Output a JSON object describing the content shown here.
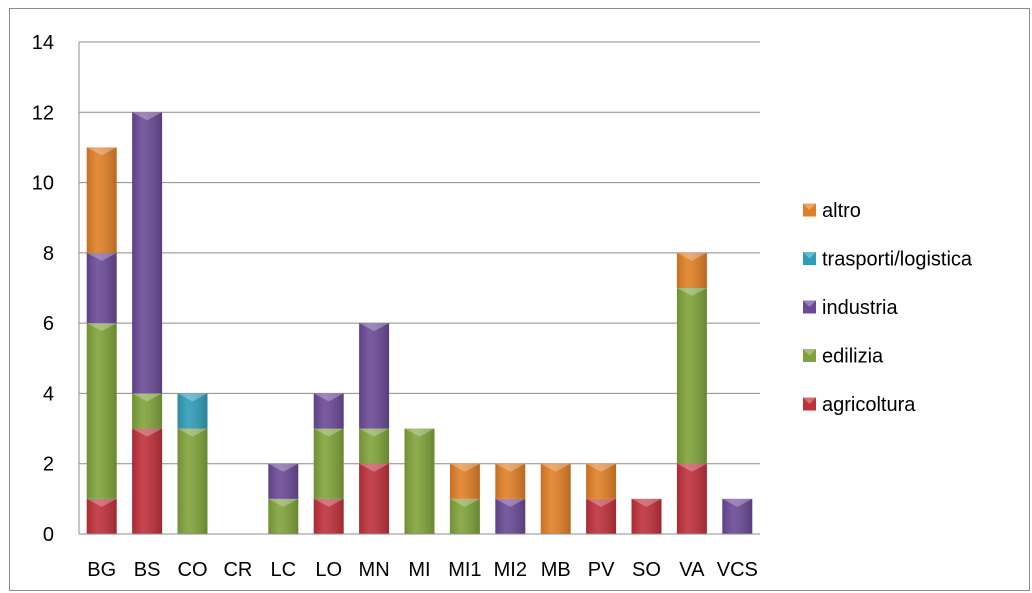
{
  "chart_data": {
    "type": "bar",
    "stacked": true,
    "title": "",
    "xlabel": "",
    "ylabel": "",
    "ylim": [
      0,
      14
    ],
    "yticks": [
      0,
      2,
      4,
      6,
      8,
      10,
      12,
      14
    ],
    "grid": true,
    "legend_position": "right",
    "categories": [
      "BG",
      "BS",
      "CO",
      "CR",
      "LC",
      "LO",
      "MN",
      "MI",
      "MI1",
      "MI2",
      "MB",
      "PV",
      "SO",
      "VA",
      "VCS"
    ],
    "series": [
      {
        "name": "agricoltura",
        "color": "#c0303a",
        "values": [
          1,
          3,
          0,
          0,
          0,
          1,
          2,
          0,
          0,
          0,
          0,
          1,
          1,
          2,
          0
        ]
      },
      {
        "name": "edilizia",
        "color": "#7fa33a",
        "values": [
          5,
          1,
          3,
          0,
          1,
          2,
          1,
          3,
          1,
          0,
          0,
          0,
          0,
          5,
          0
        ]
      },
      {
        "name": "industria",
        "color": "#6a4a96",
        "values": [
          2,
          8,
          0,
          0,
          1,
          1,
          3,
          0,
          0,
          1,
          0,
          0,
          0,
          0,
          1
        ]
      },
      {
        "name": "trasporti/logistica",
        "color": "#2f9db8",
        "values": [
          0,
          0,
          1,
          0,
          0,
          0,
          0,
          0,
          0,
          0,
          0,
          0,
          0,
          0,
          0
        ]
      },
      {
        "name": "altro",
        "color": "#e07f26",
        "values": [
          3,
          0,
          0,
          0,
          0,
          0,
          0,
          0,
          1,
          1,
          2,
          1,
          0,
          1,
          0
        ]
      }
    ],
    "legend_order": [
      "altro",
      "trasporti/logistica",
      "industria",
      "edilizia",
      "agricoltura"
    ]
  }
}
